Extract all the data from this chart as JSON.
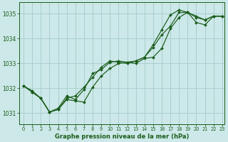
{
  "title": "Graphe pression niveau de la mer (hPa)",
  "background_color": "#cce8e8",
  "grid_color": "#aacfcf",
  "line_color": "#1a5c1a",
  "x_min": -0.5,
  "x_max": 23.3,
  "y_min": 1030.55,
  "y_max": 1035.45,
  "y_ticks": [
    1031,
    1032,
    1033,
    1034,
    1035
  ],
  "x_ticks": [
    0,
    1,
    2,
    3,
    4,
    5,
    6,
    7,
    8,
    9,
    10,
    11,
    12,
    13,
    14,
    15,
    16,
    17,
    18,
    19,
    20,
    21,
    22,
    23
  ],
  "series1_x": [
    0,
    1,
    2,
    3,
    4,
    5,
    6,
    7,
    8,
    9,
    10,
    11,
    12,
    13,
    14,
    15,
    16,
    17,
    18,
    19,
    20,
    21,
    22,
    23
  ],
  "series1_y": [
    1032.1,
    1031.85,
    1031.6,
    1031.05,
    1031.15,
    1031.55,
    1031.5,
    1031.45,
    1032.05,
    1032.5,
    1032.8,
    1033.0,
    1033.05,
    1033.0,
    1033.2,
    1033.25,
    1033.6,
    1034.4,
    1034.85,
    1035.05,
    1034.9,
    1034.75,
    1034.9,
    1034.9
  ],
  "series2_x": [
    0,
    1,
    2,
    3,
    4,
    5,
    6,
    7,
    8,
    9,
    10,
    11,
    12,
    13,
    14,
    15,
    16,
    17,
    18,
    19,
    20,
    21,
    22,
    23
  ],
  "series2_y": [
    1032.1,
    1031.85,
    1031.6,
    1031.05,
    1031.15,
    1031.6,
    1031.7,
    1032.05,
    1032.45,
    1032.85,
    1033.1,
    1033.05,
    1033.0,
    1033.1,
    1033.25,
    1033.65,
    1034.15,
    1034.5,
    1035.05,
    1035.05,
    1034.85,
    1034.75,
    1034.9,
    1034.9
  ],
  "series3_x": [
    0,
    1,
    2,
    3,
    4,
    5,
    6,
    7,
    8,
    9,
    10,
    11,
    12,
    13,
    14,
    15,
    16,
    17,
    18,
    19,
    20,
    21,
    22,
    23
  ],
  "series3_y": [
    1032.1,
    1031.9,
    1031.6,
    1031.05,
    1031.2,
    1031.7,
    1031.55,
    1031.95,
    1032.6,
    1032.75,
    1033.05,
    1033.1,
    1033.05,
    1033.1,
    1033.25,
    1033.75,
    1034.35,
    1034.95,
    1035.15,
    1035.05,
    1034.65,
    1034.55,
    1034.9,
    1034.9
  ]
}
